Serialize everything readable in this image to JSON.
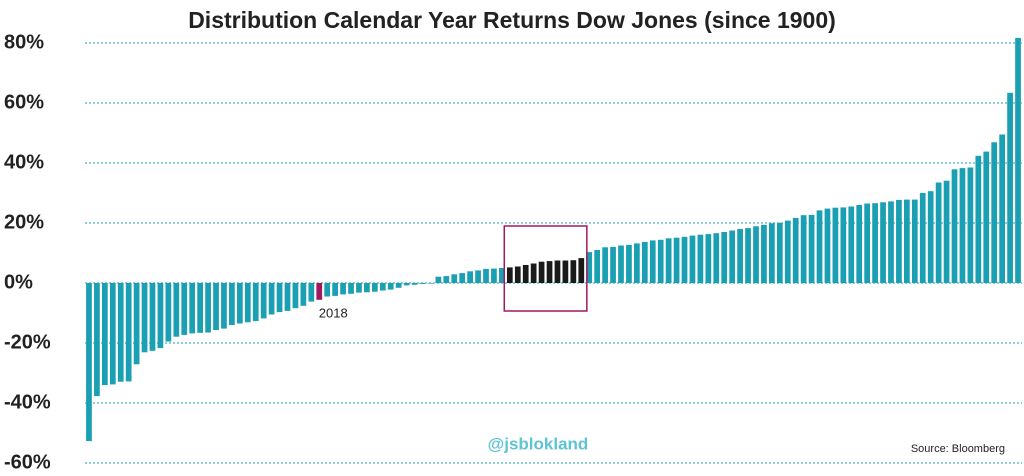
{
  "chart_data": {
    "type": "bar",
    "title": "Distribution Calendar Year Returns Dow Jones (since 1900)",
    "watermark": "@jsblokland",
    "source": "Source: Bloomberg",
    "categories": [
      null,
      null,
      null,
      null,
      null,
      null,
      null,
      null,
      null,
      null,
      null,
      null,
      null,
      null,
      null,
      null,
      null,
      null,
      null,
      null,
      null,
      null,
      null,
      null,
      null,
      null,
      null,
      null,
      null,
      "2018",
      null,
      null,
      null,
      null,
      null,
      null,
      null,
      null,
      null,
      null,
      null,
      null,
      null,
      null,
      null,
      null,
      null,
      null,
      null,
      null,
      null,
      null,
      null,
      null,
      null,
      null,
      null,
      null,
      null,
      null,
      null,
      null,
      null,
      null,
      null,
      null,
      null,
      null,
      null,
      null,
      null,
      null,
      null,
      null,
      null,
      null,
      null,
      null,
      null,
      null,
      null,
      null,
      null,
      null,
      null,
      null,
      null,
      null,
      null,
      null,
      null,
      null,
      null,
      null,
      null,
      null,
      null,
      null,
      null,
      null,
      null,
      null,
      null,
      null,
      null,
      null,
      null,
      null,
      null,
      null,
      null,
      null,
      null,
      null,
      null,
      null,
      null,
      null
    ],
    "values": [
      -52.7,
      -37.7,
      -34.0,
      -33.8,
      -32.9,
      -32.8,
      -27.1,
      -23.1,
      -22.6,
      -21.7,
      -19.5,
      -17.9,
      -17.3,
      -16.8,
      -16.6,
      -16.5,
      -15.7,
      -15.2,
      -14.0,
      -13.5,
      -13.1,
      -12.7,
      -11.8,
      -10.5,
      -9.7,
      -9.3,
      -8.4,
      -7.6,
      -6.2,
      -5.6,
      -4.5,
      -4.3,
      -3.8,
      -3.6,
      -3.2,
      -3.1,
      -2.9,
      -2.5,
      -2.2,
      -1.6,
      -0.8,
      -0.6,
      -0.3,
      -0.2,
      2.1,
      2.3,
      2.9,
      3.3,
      3.9,
      4.2,
      4.7,
      4.8,
      5.0,
      5.2,
      5.5,
      6.0,
      6.5,
      7.1,
      7.3,
      7.5,
      7.5,
      7.6,
      8.3,
      10.3,
      11.0,
      11.9,
      12.0,
      12.5,
      12.7,
      13.2,
      13.7,
      14.2,
      14.4,
      14.9,
      15.1,
      15.4,
      15.8,
      16.1,
      16.3,
      16.6,
      17.0,
      17.5,
      18.0,
      18.3,
      18.9,
      19.4,
      19.9,
      20.1,
      20.8,
      21.7,
      22.6,
      22.7,
      24.2,
      24.8,
      25.1,
      25.2,
      25.5,
      26.0,
      26.5,
      26.6,
      26.9,
      27.2,
      27.7,
      27.8,
      27.8,
      30.0,
      30.6,
      33.5,
      34.1,
      37.9,
      38.3,
      38.5,
      42.4,
      43.8,
      46.9,
      49.5,
      63.4,
      81.7
    ],
    "colors": [
      "#1a9fb3",
      "#1a9fb3",
      "#1a9fb3",
      "#1a9fb3",
      "#1a9fb3",
      "#1a9fb3",
      "#1a9fb3",
      "#1a9fb3",
      "#1a9fb3",
      "#1a9fb3",
      "#1a9fb3",
      "#1a9fb3",
      "#1a9fb3",
      "#1a9fb3",
      "#1a9fb3",
      "#1a9fb3",
      "#1a9fb3",
      "#1a9fb3",
      "#1a9fb3",
      "#1a9fb3",
      "#1a9fb3",
      "#1a9fb3",
      "#1a9fb3",
      "#1a9fb3",
      "#1a9fb3",
      "#1a9fb3",
      "#1a9fb3",
      "#1a9fb3",
      "#1a9fb3",
      "#a0185f",
      "#1a9fb3",
      "#1a9fb3",
      "#1a9fb3",
      "#1a9fb3",
      "#1a9fb3",
      "#1a9fb3",
      "#1a9fb3",
      "#1a9fb3",
      "#1a9fb3",
      "#1a9fb3",
      "#1a9fb3",
      "#1a9fb3",
      "#1a9fb3",
      "#1a9fb3",
      "#1a9fb3",
      "#1a9fb3",
      "#1a9fb3",
      "#1a9fb3",
      "#1a9fb3",
      "#1a9fb3",
      "#1a9fb3",
      "#1a9fb3",
      "#1a9fb3",
      "#1a1a1a",
      "#1a1a1a",
      "#1a1a1a",
      "#1a1a1a",
      "#1a1a1a",
      "#1a1a1a",
      "#1a1a1a",
      "#1a1a1a",
      "#1a1a1a",
      "#1a1a1a",
      "#1a9fb3",
      "#1a9fb3",
      "#1a9fb3",
      "#1a9fb3",
      "#1a9fb3",
      "#1a9fb3",
      "#1a9fb3",
      "#1a9fb3",
      "#1a9fb3",
      "#1a9fb3",
      "#1a9fb3",
      "#1a9fb3",
      "#1a9fb3",
      "#1a9fb3",
      "#1a9fb3",
      "#1a9fb3",
      "#1a9fb3",
      "#1a9fb3",
      "#1a9fb3",
      "#1a9fb3",
      "#1a9fb3",
      "#1a9fb3",
      "#1a9fb3",
      "#1a9fb3",
      "#1a9fb3",
      "#1a9fb3",
      "#1a9fb3",
      "#1a9fb3",
      "#1a9fb3",
      "#1a9fb3",
      "#1a9fb3",
      "#1a9fb3",
      "#1a9fb3",
      "#1a9fb3",
      "#1a9fb3",
      "#1a9fb3",
      "#1a9fb3",
      "#1a9fb3",
      "#1a9fb3",
      "#1a9fb3",
      "#1a9fb3",
      "#1a9fb3",
      "#1a9fb3",
      "#1a9fb3",
      "#1a9fb3",
      "#1a9fb3",
      "#1a9fb3",
      "#1a9fb3",
      "#1a9fb3",
      "#1a9fb3",
      "#1a9fb3",
      "#1a9fb3",
      "#1a9fb3",
      "#1a9fb3",
      "#1a9fb3"
    ],
    "box_color": "#a0185f",
    "grid": true,
    "ylim": [
      -60,
      83
    ],
    "yticks": [
      {
        "value": -60,
        "label": "-60%"
      },
      {
        "value": -40,
        "label": "-40%"
      },
      {
        "value": -20,
        "label": "-20%"
      },
      {
        "value": 0,
        "label": "0%"
      },
      {
        "value": 20,
        "label": "20%"
      },
      {
        "value": 40,
        "label": "40%"
      },
      {
        "value": 60,
        "label": "60%"
      },
      {
        "value": 80,
        "label": "80%"
      }
    ]
  }
}
